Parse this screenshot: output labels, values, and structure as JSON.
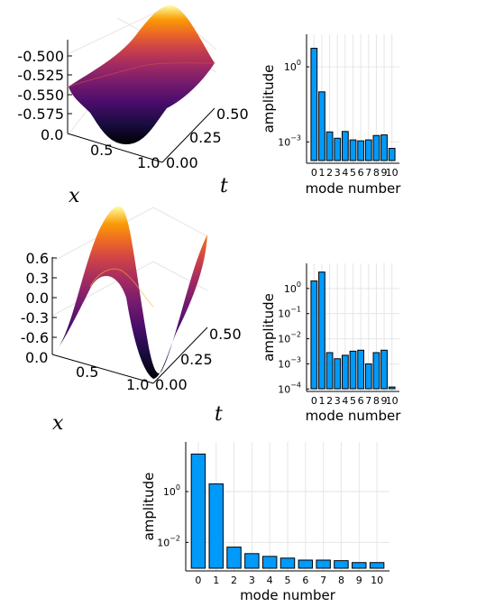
{
  "chart_data": [
    {
      "type": "surface",
      "id": "surface-1",
      "xlabel": "x",
      "ylabel": "t",
      "x_ticks": [
        "0.0",
        "0.5",
        "1.0"
      ],
      "t_ticks": [
        "0.00",
        "0.25",
        "0.50"
      ],
      "z_ticks": [
        "-0.500",
        "-0.525",
        "-0.550",
        "-0.575"
      ],
      "zlim": [
        -0.6,
        -0.49
      ],
      "colormap": "inferno"
    },
    {
      "type": "bar",
      "id": "bar-1",
      "xlabel": "mode number",
      "ylabel": "amplitude",
      "yscale": "log10",
      "categories": [
        "0",
        "1",
        "2",
        "3",
        "4",
        "5",
        "6",
        "7",
        "8",
        "9",
        "10"
      ],
      "values": [
        5.5,
        0.1,
        0.0025,
        0.0014,
        0.0026,
        0.0012,
        0.0011,
        0.0012,
        0.0018,
        0.0019,
        0.00055
      ],
      "ylim": [
        0.00014,
        20
      ],
      "yticks": [
        {
          "value": 1,
          "mantissa": "10",
          "exp": "0"
        },
        {
          "value": 0.001,
          "mantissa": "10",
          "exp": "−3"
        }
      ]
    },
    {
      "type": "surface",
      "id": "surface-2",
      "xlabel": "x",
      "ylabel": "t",
      "x_ticks": [
        "0.0",
        "0.5",
        "1.0"
      ],
      "t_ticks": [
        "0.00",
        "0.25",
        "0.50"
      ],
      "z_ticks": [
        "0.6",
        "0.3",
        "0.0",
        "-0.3",
        "-0.6"
      ],
      "zlim": [
        -0.8,
        0.8
      ],
      "colormap": "inferno"
    },
    {
      "type": "bar",
      "id": "bar-2",
      "xlabel": "mode number",
      "ylabel": "amplitude",
      "yscale": "log10",
      "categories": [
        "0",
        "1",
        "2",
        "3",
        "4",
        "5",
        "6",
        "7",
        "8",
        "9",
        "10"
      ],
      "values": [
        2.0,
        4.5,
        0.0028,
        0.0016,
        0.0022,
        0.0032,
        0.0035,
        0.001,
        0.0028,
        0.0035,
        0.00012
      ],
      "ylim": [
        8e-05,
        10
      ],
      "yticks": [
        {
          "value": 1,
          "mantissa": "10",
          "exp": "0"
        },
        {
          "value": 0.1,
          "mantissa": "10",
          "exp": "−1"
        },
        {
          "value": 0.01,
          "mantissa": "10",
          "exp": "−2"
        },
        {
          "value": 0.001,
          "mantissa": "10",
          "exp": "−3"
        },
        {
          "value": 0.0001,
          "mantissa": "10",
          "exp": "−4"
        }
      ]
    },
    {
      "type": "bar",
      "id": "bar-3",
      "xlabel": "mode number",
      "ylabel": "amplitude",
      "yscale": "log10",
      "categories": [
        "0",
        "1",
        "2",
        "3",
        "4",
        "5",
        "6",
        "7",
        "8",
        "9",
        "10"
      ],
      "values": [
        30,
        2.0,
        0.0065,
        0.0036,
        0.0028,
        0.0024,
        0.002,
        0.002,
        0.0019,
        0.0016,
        0.0016
      ],
      "ylim": [
        0.00075,
        90
      ],
      "yticks": [
        {
          "value": 1,
          "mantissa": "10",
          "exp": "0"
        },
        {
          "value": 0.01,
          "mantissa": "10",
          "exp": "−2"
        }
      ]
    }
  ]
}
